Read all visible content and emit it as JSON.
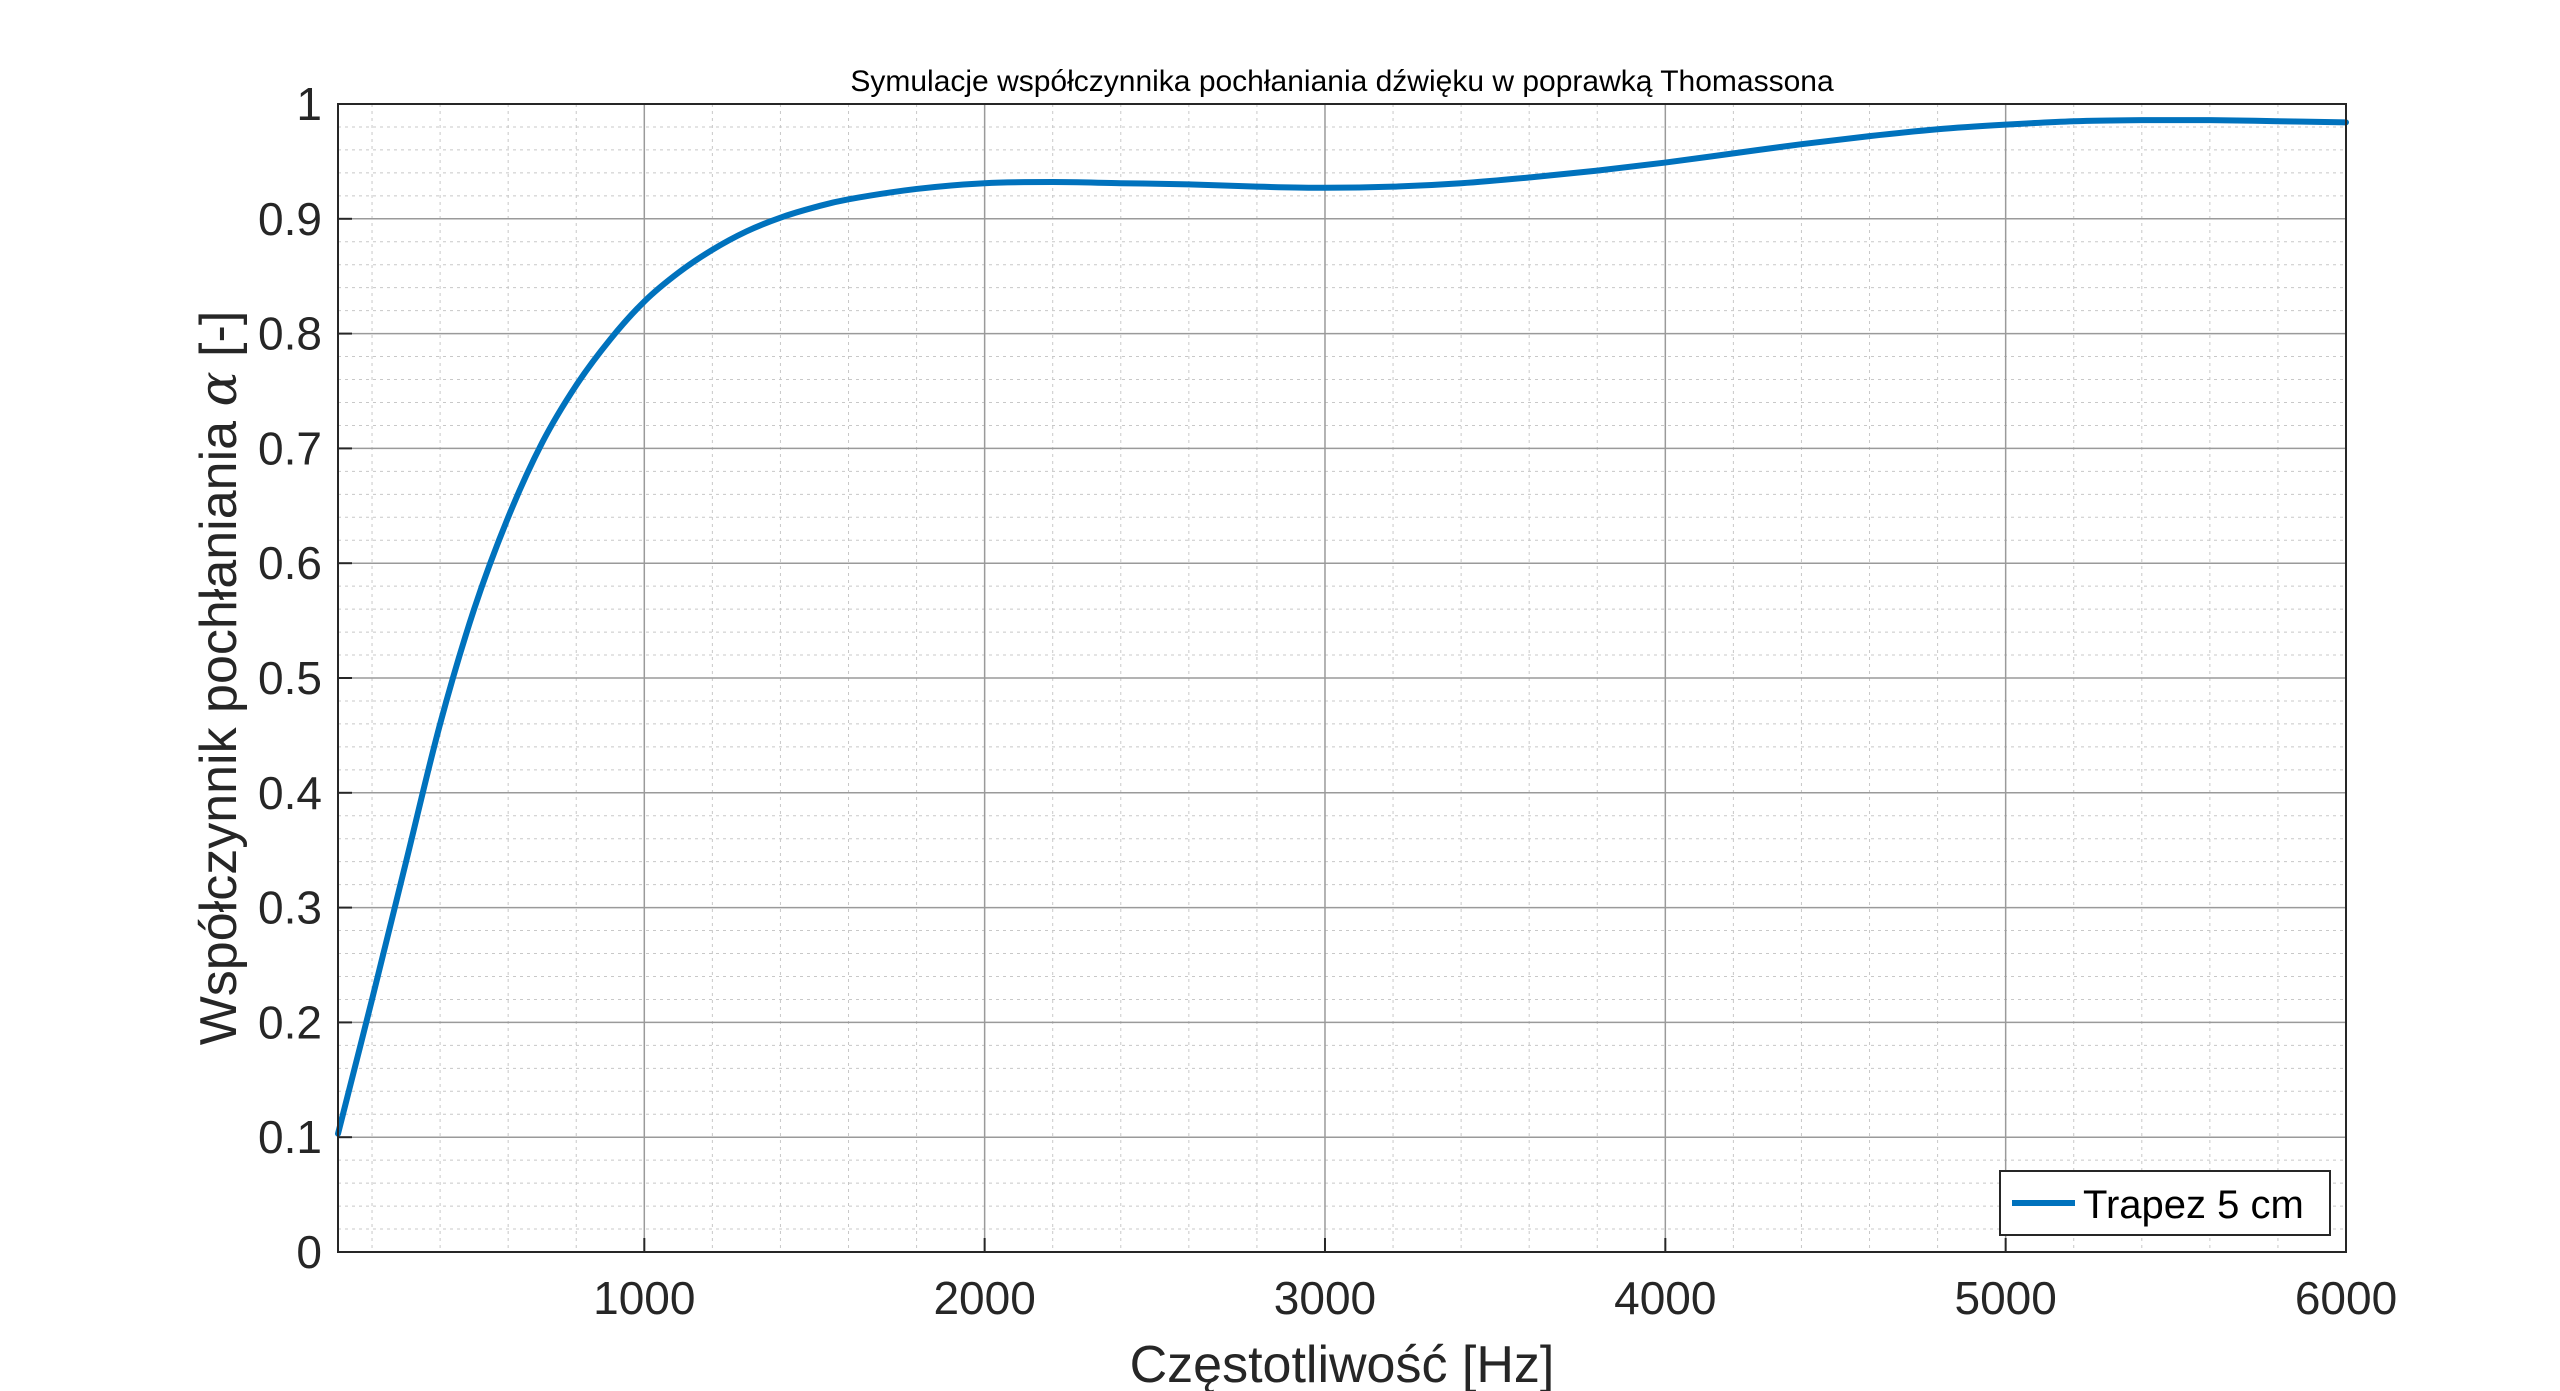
{
  "chart_data": {
    "type": "line",
    "title": "Symulacje współczynnika pochłaniania dźwięku w poprawką Thomassona",
    "xlabel": "Częstotliwość [Hz]",
    "ylabel_prefix": "Współczynnik pochłaniania ",
    "ylabel_symbol": "α",
    "ylabel_suffix": " [-]",
    "xlim": [
      100,
      6000
    ],
    "ylim": [
      0,
      1
    ],
    "x_ticks": [
      1000,
      2000,
      3000,
      4000,
      5000,
      6000
    ],
    "y_ticks": [
      0,
      0.1,
      0.2,
      0.3,
      0.4,
      0.5,
      0.6,
      0.7,
      0.8,
      0.9,
      1
    ],
    "x_tick_labels": [
      "1000",
      "2000",
      "3000",
      "4000",
      "5000",
      "6000"
    ],
    "y_tick_labels": [
      "0",
      "0.1",
      "0.2",
      "0.3",
      "0.4",
      "0.5",
      "0.6",
      "0.7",
      "0.8",
      "0.9",
      "1"
    ],
    "grid": true,
    "minor_grid": true,
    "legend_position": "bottom-right",
    "series": [
      {
        "name": "Trapez 5 cm",
        "color": "#0072BD",
        "x": [
          100,
          200,
          300,
          400,
          500,
          600,
          700,
          800,
          900,
          1000,
          1100,
          1200,
          1300,
          1400,
          1500,
          1600,
          1800,
          2000,
          2200,
          2400,
          2600,
          2800,
          3000,
          3200,
          3400,
          3600,
          3800,
          4000,
          4200,
          4400,
          4600,
          4800,
          5000,
          5200,
          5400,
          5600,
          5800,
          6000
        ],
        "y": [
          0.103,
          0.22,
          0.34,
          0.46,
          0.56,
          0.64,
          0.705,
          0.755,
          0.795,
          0.828,
          0.853,
          0.873,
          0.889,
          0.901,
          0.91,
          0.917,
          0.926,
          0.931,
          0.932,
          0.931,
          0.93,
          0.928,
          0.927,
          0.928,
          0.931,
          0.936,
          0.942,
          0.949,
          0.957,
          0.965,
          0.972,
          0.978,
          0.982,
          0.985,
          0.986,
          0.986,
          0.985,
          0.984
        ]
      }
    ]
  }
}
